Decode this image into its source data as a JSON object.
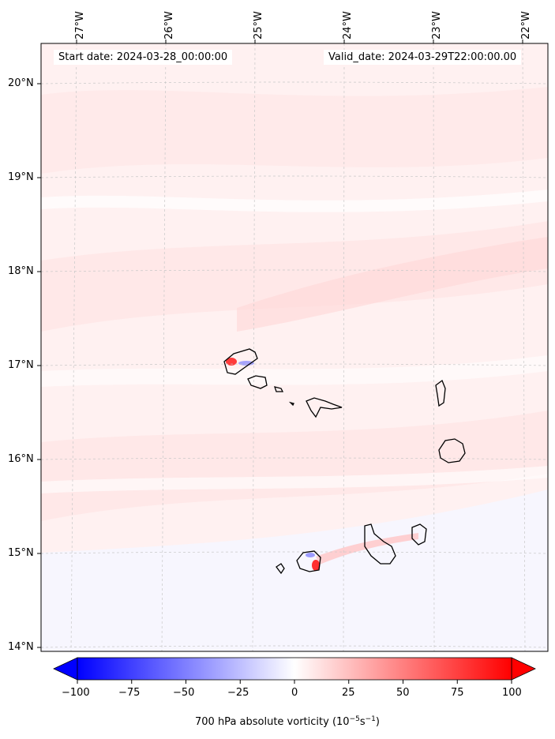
{
  "map": {
    "start_label": "Start date: 2024-03-28_00:00:00",
    "valid_label": "Valid_date: 2024-03-29T22:00:00.00",
    "lon_ticks": [
      "27°W",
      "26°W",
      "25°W",
      "24°W",
      "23°W",
      "22°W"
    ],
    "lat_ticks": [
      "20°N",
      "19°N",
      "18°N",
      "17°N",
      "16°N",
      "15°N",
      "14°N"
    ],
    "colormap": [
      "#0000ff",
      "#ffffff",
      "#ff0000"
    ]
  },
  "colorbar": {
    "ticks": [
      "−100",
      "−75",
      "−50",
      "−25",
      "0",
      "25",
      "50",
      "75",
      "100"
    ],
    "title_main": "700 hPa absolute vorticity (10",
    "exp1": "−5",
    "mid": "s",
    "exp2": "−1",
    "close": ")"
  }
}
